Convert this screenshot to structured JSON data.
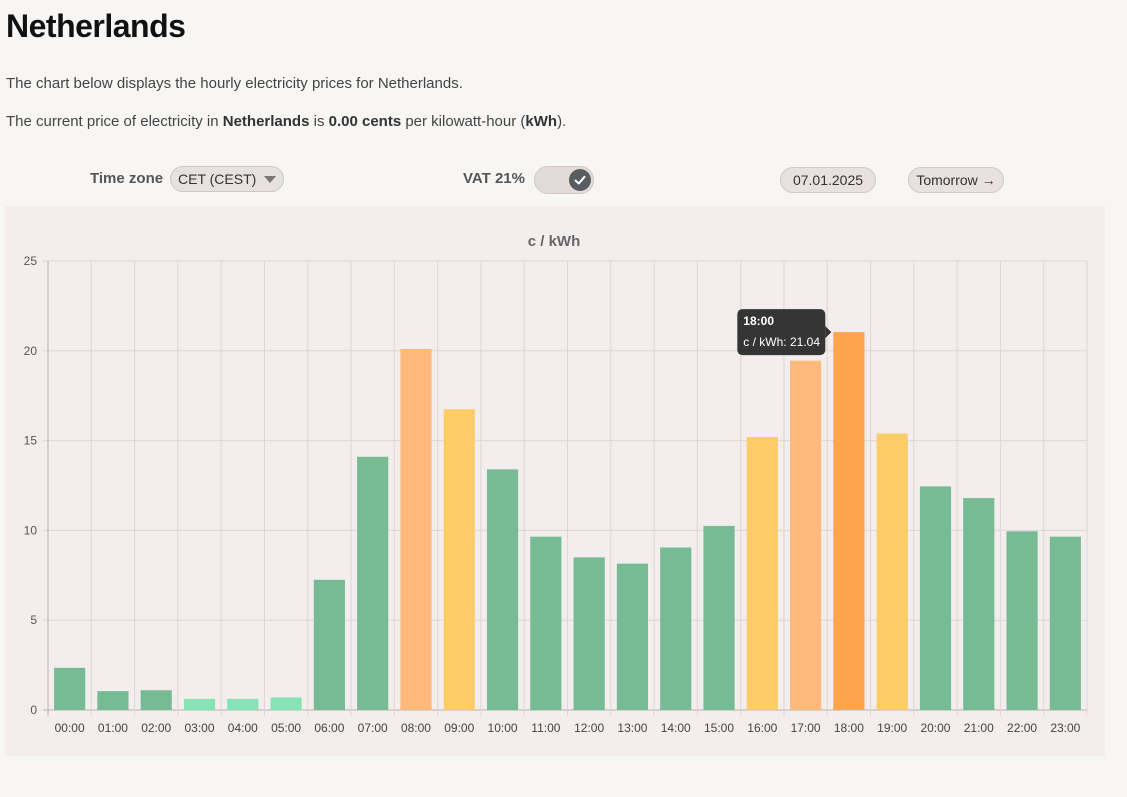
{
  "header": {
    "title": "Netherlands",
    "intro": "The chart below displays the hourly electricity prices for Netherlands.",
    "current": {
      "prefix": "The current price of electricity in ",
      "country": "Netherlands",
      "mid": " is ",
      "price": "0.00 cents",
      "per": " per kilowatt-hour (",
      "unit": "kWh",
      "suffix": ")."
    }
  },
  "controls": {
    "timezone_label": "Time zone",
    "timezone_value": "CET (CEST)",
    "vat_label": "VAT 21%",
    "vat_enabled": true,
    "date": "07.01.2025",
    "tomorrow_label": "Tomorrow →"
  },
  "chart_data": {
    "type": "bar",
    "title": "c / kWh",
    "categories": [
      "00:00",
      "01:00",
      "02:00",
      "03:00",
      "04:00",
      "05:00",
      "06:00",
      "07:00",
      "08:00",
      "09:00",
      "10:00",
      "11:00",
      "12:00",
      "13:00",
      "14:00",
      "15:00",
      "16:00",
      "17:00",
      "18:00",
      "19:00",
      "20:00",
      "21:00",
      "22:00",
      "23:00"
    ],
    "series": [
      {
        "name": "c / kWh",
        "values": [
          2.35,
          1.05,
          1.1,
          0.62,
          0.62,
          0.7,
          7.25,
          14.1,
          20.1,
          16.75,
          13.4,
          9.65,
          8.5,
          8.15,
          9.05,
          10.25,
          15.2,
          19.45,
          21.04,
          15.4,
          12.45,
          11.8,
          9.95,
          9.65
        ]
      }
    ],
    "colors": [
      "#76bb93",
      "#76bb93",
      "#76bb93",
      "#87e2b5",
      "#87e2b5",
      "#87e2b5",
      "#76bb93",
      "#76bb93",
      "#fdb97c",
      "#fccd66",
      "#76bb93",
      "#76bb93",
      "#76bb93",
      "#76bb93",
      "#76bb93",
      "#76bb93",
      "#fccd66",
      "#fdb97c",
      "#fea44d",
      "#fccd66",
      "#76bb93",
      "#76bb93",
      "#76bb93",
      "#76bb93"
    ],
    "ylim": [
      0,
      25
    ],
    "yticks": [
      0,
      5,
      10,
      15,
      20,
      25
    ],
    "grid": true,
    "tooltip": {
      "title": "18:00",
      "label": "c / kWh: 21.04",
      "index": 18
    }
  }
}
